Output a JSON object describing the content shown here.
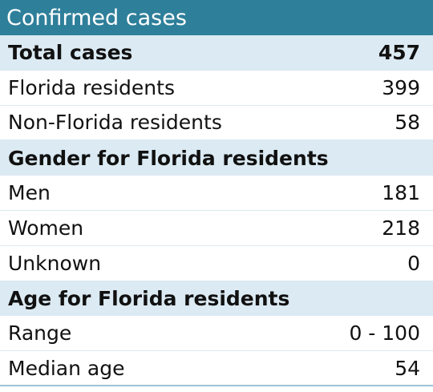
{
  "title": "Confirmed cases",
  "colors": {
    "header_bg": "#2e7f9a",
    "header_text": "#ffffff",
    "section_bg": "#dbeaf3",
    "row_bg": "#ffffff",
    "text": "#111111"
  },
  "rows": [
    {
      "label": "Total cases",
      "value": "457"
    },
    {
      "label": "Florida residents",
      "value": "399"
    },
    {
      "label": "Non-Florida residents",
      "value": "58"
    },
    {
      "label": "Gender for Florida residents",
      "value": ""
    },
    {
      "label": "Men",
      "value": "181"
    },
    {
      "label": "Women",
      "value": "218"
    },
    {
      "label": "Unknown",
      "value": "0"
    },
    {
      "label": "Age for Florida residents",
      "value": ""
    },
    {
      "label": "Range",
      "value": "0 - 100"
    },
    {
      "label": "Median age",
      "value": "54"
    }
  ]
}
